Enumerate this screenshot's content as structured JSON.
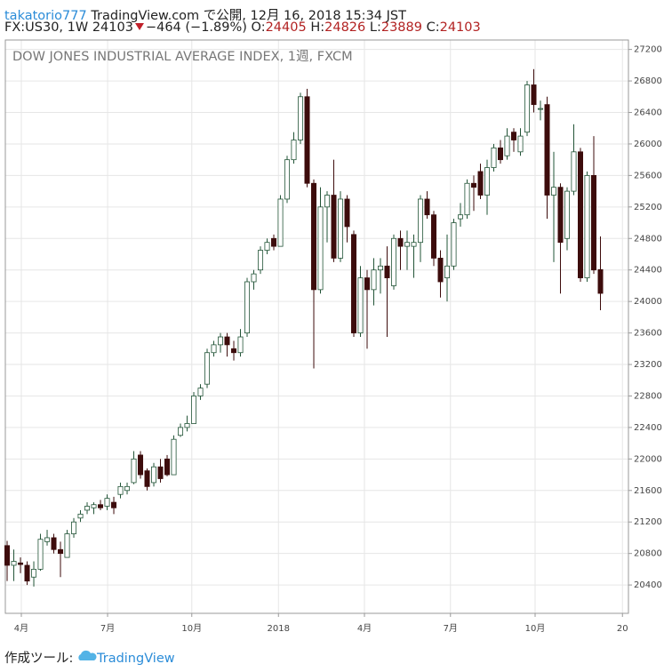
{
  "header": {
    "user": "takatorio777",
    "published": "TradingView.com で公開, 12月 16, 2018 15:34 JST",
    "symbol": "FX:US30, 1W 24103",
    "change": "−464 (−1.89%)",
    "o_label": "O:",
    "o_value": "24405",
    "h_label": "H:",
    "h_value": "24826",
    "l_label": "L:",
    "l_value": "23889",
    "c_label": "C:",
    "c_value": "24103"
  },
  "chart_data": {
    "type": "candlestick",
    "title": "DOW JONES INDUSTRIAL AVERAGE INDEX, 1週, FXCM",
    "up_color": "#ffffff",
    "up_edge": "#225437",
    "down_color": "#3d0c0c",
    "grid": true,
    "ylim": [
      20040,
      27320
    ],
    "yticks": [
      20400,
      20800,
      21200,
      21600,
      22000,
      22400,
      22800,
      23200,
      23600,
      24000,
      24400,
      24800,
      25200,
      25600,
      26000,
      26400,
      26800,
      27200
    ],
    "xlim": [
      -0.27,
      93.2
    ],
    "xticks": [
      {
        "value": 2.13,
        "label": "4月"
      },
      {
        "value": 15.07,
        "label": "7月"
      },
      {
        "value": 27.7,
        "label": "10月"
      },
      {
        "value": 40.7,
        "label": "2018"
      },
      {
        "value": 53.6,
        "label": "4月"
      },
      {
        "value": 66.5,
        "label": "7月"
      },
      {
        "value": 79.2,
        "label": "10月"
      },
      {
        "value": 92.3,
        "label": "20"
      }
    ],
    "open": [
      20900,
      20650,
      20680,
      20650,
      20500,
      20600,
      20950,
      21000,
      20850,
      20750,
      21050,
      21250,
      21350,
      21380,
      21420,
      21400,
      21450,
      21550,
      21600,
      21700,
      22050,
      21850,
      21700,
      21900,
      22000,
      21800,
      22300,
      22400,
      22450,
      22800,
      22950,
      23350,
      23450,
      23550,
      23400,
      23350,
      23600,
      24250,
      24400,
      24650,
      24800,
      24700,
      25300,
      25800,
      26050,
      26600,
      25500,
      24150,
      25200,
      25350,
      24550,
      25300,
      24850,
      23600,
      24300,
      24150,
      24400,
      24450,
      24200,
      24800,
      24700,
      24700,
      24750,
      25300,
      25100,
      24550,
      24300,
      24450,
      25050,
      25100,
      25500,
      25650,
      25350,
      25700,
      25950,
      25850,
      26150,
      25900,
      26150,
      26750,
      26450,
      26500,
      25350,
      25450,
      24800,
      25400,
      25900,
      24300,
      25600,
      24405
    ],
    "high": [
      20960,
      20850,
      20750,
      20700,
      20700,
      21050,
      21100,
      21050,
      20950,
      21100,
      21250,
      21350,
      21450,
      21450,
      21480,
      21550,
      21520,
      21700,
      21700,
      22100,
      22100,
      21880,
      21950,
      22000,
      22050,
      22300,
      22450,
      22550,
      22850,
      22950,
      23400,
      23500,
      23600,
      23600,
      23500,
      23650,
      24300,
      24400,
      24700,
      24800,
      24850,
      25350,
      25850,
      26150,
      26650,
      26700,
      25550,
      25450,
      25400,
      25800,
      25400,
      25350,
      24900,
      24450,
      24400,
      24550,
      24550,
      24700,
      24850,
      24900,
      24900,
      24850,
      25350,
      25400,
      25150,
      24650,
      24850,
      25050,
      25250,
      25550,
      25600,
      25750,
      25800,
      26000,
      26050,
      26200,
      26200,
      26200,
      26800,
      26950,
      26550,
      26600,
      25900,
      25500,
      25450,
      26250,
      25950,
      25650,
      26100,
      24826
    ],
    "low": [
      20450,
      20450,
      20550,
      20400,
      20380,
      20580,
      20900,
      20800,
      20500,
      20750,
      21000,
      21200,
      21300,
      21300,
      21350,
      21350,
      21300,
      21500,
      21550,
      21680,
      21750,
      21600,
      21650,
      21700,
      21780,
      21800,
      22280,
      22350,
      22450,
      22750,
      22900,
      23300,
      23350,
      23300,
      23250,
      23300,
      23550,
      24150,
      24350,
      24600,
      24650,
      24700,
      25250,
      25750,
      26000,
      25450,
      23150,
      24100,
      24750,
      24500,
      24500,
      24750,
      23550,
      23550,
      23400,
      23950,
      24100,
      23550,
      24150,
      24400,
      24400,
      24300,
      24500,
      25050,
      24450,
      24050,
      24000,
      24400,
      24950,
      25050,
      25150,
      25300,
      25100,
      25650,
      25750,
      25800,
      25900,
      25850,
      26100,
      26400,
      26300,
      25050,
      24500,
      24100,
      24650,
      25350,
      24250,
      24250,
      24350,
      23889
    ],
    "close": [
      20650,
      20700,
      20660,
      20450,
      20600,
      20980,
      21000,
      20850,
      20800,
      21050,
      21200,
      21300,
      21400,
      21420,
      21380,
      21500,
      21380,
      21650,
      21650,
      22000,
      21800,
      21650,
      21900,
      21750,
      21800,
      22250,
      22400,
      22450,
      22800,
      22900,
      23350,
      23450,
      23550,
      23450,
      23350,
      23550,
      24250,
      24350,
      24650,
      24750,
      24700,
      25300,
      25800,
      26050,
      26600,
      25500,
      24150,
      25200,
      25350,
      24550,
      25300,
      24950,
      23600,
      24300,
      24150,
      24400,
      24450,
      24300,
      24800,
      24700,
      24750,
      24750,
      25300,
      25100,
      24550,
      24250,
      24450,
      25000,
      25100,
      25500,
      25450,
      25350,
      25700,
      25950,
      25800,
      26100,
      26050,
      26100,
      26750,
      26500,
      26450,
      25350,
      25450,
      24750,
      25400,
      25900,
      24300,
      25600,
      24400,
      24103
    ]
  },
  "footer": {
    "made_with": "作成ツール:",
    "brand": "TradingView"
  }
}
